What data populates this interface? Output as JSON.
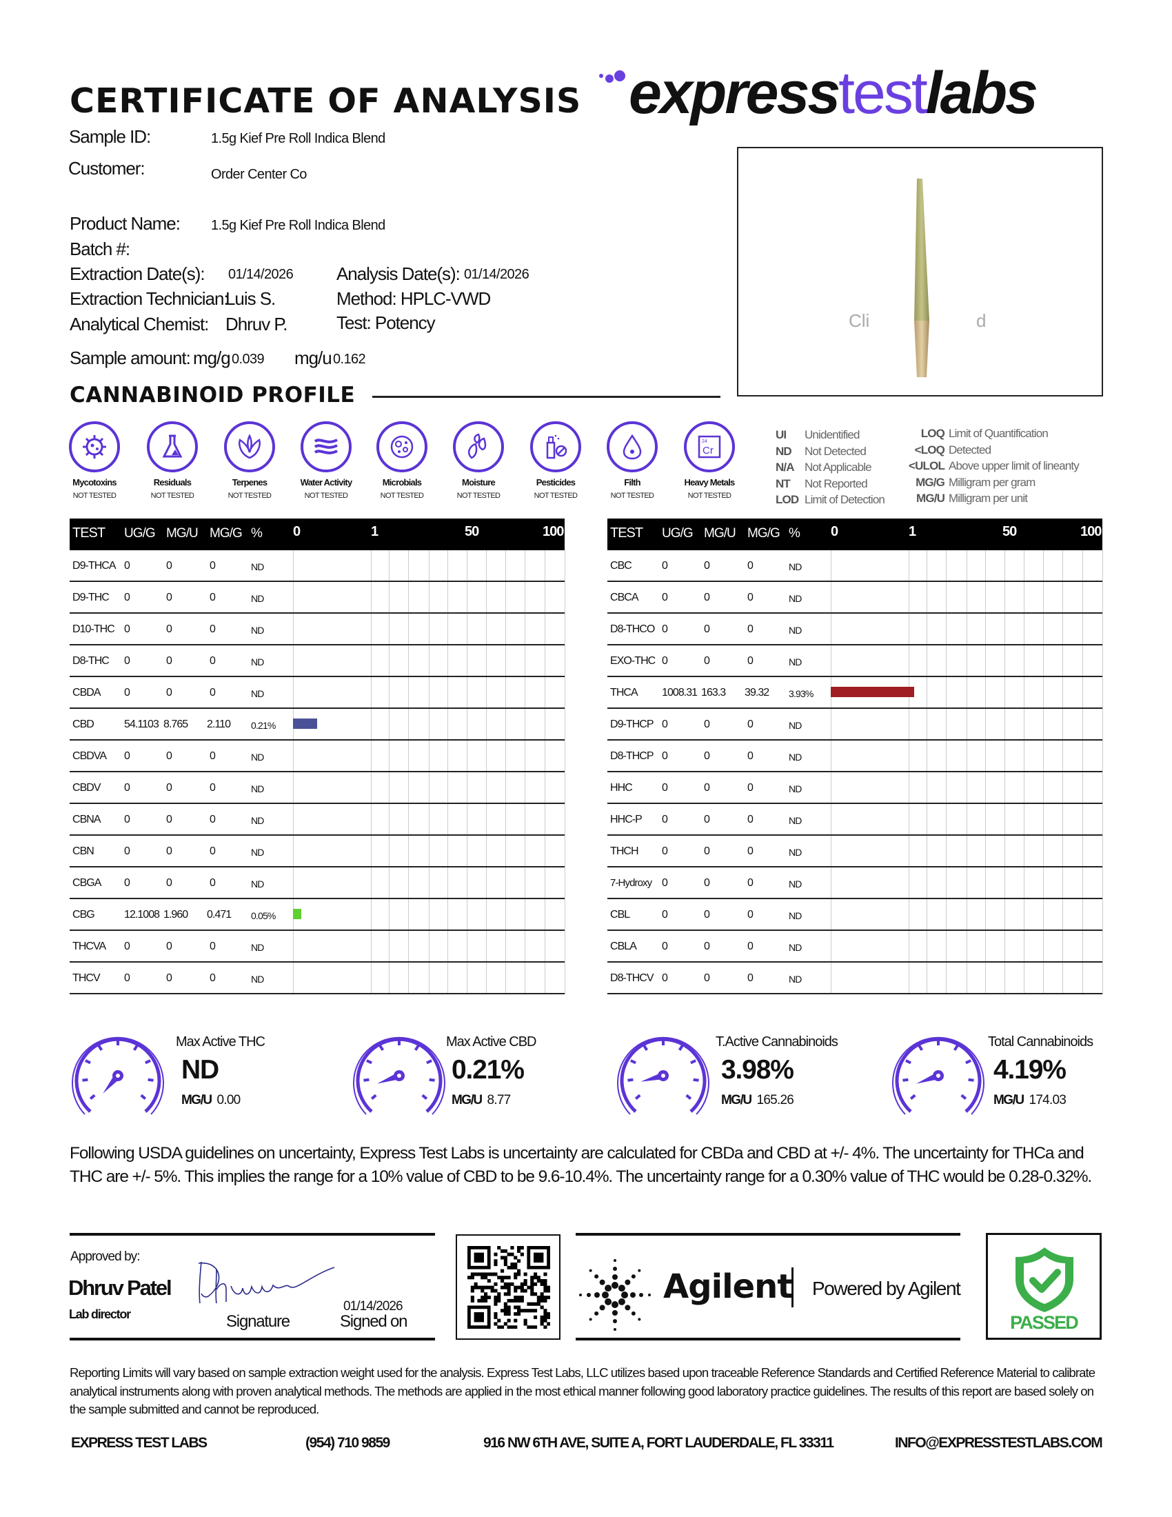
{
  "header": {
    "title": "CERTIFICATE OF ANALYSIS",
    "logo": {
      "part1": "express",
      "part2": "test",
      "part3": "labs",
      "accent_color": "#6a3fe0"
    }
  },
  "sample_info": {
    "sample_id_label": "Sample ID:",
    "sample_id": "1.5g Kief Pre Roll Indica Blend",
    "customer_label": "Customer:",
    "customer": "Order Center Co",
    "product_name_label": "Product Name:",
    "product_name": "1.5g Kief Pre Roll Indica Blend",
    "batch_label": "Batch #:",
    "extraction_date_label": "Extraction Date(s):",
    "extraction_date": "01/14/2026",
    "analysis_date_label": "Analysis Date(s):",
    "analysis_date": "01/14/2026",
    "technician_label": "Extraction Technician:",
    "technician": "Luis S.",
    "method": "Method: HPLC-VWD",
    "chemist_label": "Analytical Chemist:",
    "chemist": "Dhruv P.",
    "test": "Test: Potency",
    "sample_amount_label": "Sample amount:",
    "mg_g_label": "mg/g",
    "mg_g": "0.039",
    "mg_u_label": "mg/u",
    "mg_u": "0.162"
  },
  "product_image": {
    "overlay_left": "Cli",
    "overlay_right": "d"
  },
  "profile": {
    "title": "CANNABINOID PROFILE",
    "tests": [
      {
        "name": "Mycotoxins",
        "status": "NOT TESTED",
        "icon": "virus-icon"
      },
      {
        "name": "Residuals",
        "status": "NOT TESTED",
        "icon": "flask-icon"
      },
      {
        "name": "Terpenes",
        "status": "NOT TESTED",
        "icon": "leaf-icon"
      },
      {
        "name": "Water Activity",
        "status": "NOT TESTED",
        "icon": "waves-icon"
      },
      {
        "name": "Microbials",
        "status": "NOT TESTED",
        "icon": "petri-dish-icon"
      },
      {
        "name": "Moisture",
        "status": "NOT TESTED",
        "icon": "droplets-icon"
      },
      {
        "name": "Pesticides",
        "status": "NOT TESTED",
        "icon": "spray-bottle-icon"
      },
      {
        "name": "Filth",
        "status": "NOT TESTED",
        "icon": "drop-icon"
      },
      {
        "name": "Heavy Metals",
        "status": "NOT TESTED",
        "icon": "chromium-element-icon",
        "element_number": "24",
        "element_symbol": "Cr"
      }
    ],
    "legend_left": [
      {
        "abbr": "UI",
        "desc": "Unidentified"
      },
      {
        "abbr": "ND",
        "desc": "Not Detected"
      },
      {
        "abbr": "N/A",
        "desc": "Not Applicable"
      },
      {
        "abbr": "NT",
        "desc": "Not Reported"
      },
      {
        "abbr": "LOD",
        "desc": "Limit of Detection"
      }
    ],
    "legend_right": [
      {
        "abbr": "LOQ",
        "desc": "Limit of Quantification"
      },
      {
        "abbr": "<LOQ",
        "desc": "Detected"
      },
      {
        "abbr": "<ULOL",
        "desc": "Above upper limit of lineanty"
      },
      {
        "abbr": "MG/G",
        "desc": "Milligram per gram"
      },
      {
        "abbr": "MG/U",
        "desc": "Milligram per unit"
      }
    ]
  },
  "tables": {
    "columns": [
      "TEST",
      "UG/G",
      "MG/U",
      "MG/G",
      "%"
    ],
    "scale_ticks": [
      "0",
      "1",
      "50",
      "100"
    ],
    "left": [
      {
        "test": "D9-THCA",
        "ug_g": "0",
        "mg_u": "0",
        "mg_g": "0",
        "pct": "ND",
        "pct_value": 0
      },
      {
        "test": "D9-THC",
        "ug_g": "0",
        "mg_u": "0",
        "mg_g": "0",
        "pct": "ND",
        "pct_value": 0
      },
      {
        "test": "D10-THC",
        "ug_g": "0",
        "mg_u": "0",
        "mg_g": "0",
        "pct": "ND",
        "pct_value": 0
      },
      {
        "test": "D8-THC",
        "ug_g": "0",
        "mg_u": "0",
        "mg_g": "0",
        "pct": "ND",
        "pct_value": 0
      },
      {
        "test": "CBDA",
        "ug_g": "0",
        "mg_u": "0",
        "mg_g": "0",
        "pct": "ND",
        "pct_value": 0
      },
      {
        "test": "CBD",
        "ug_g": "54.1103",
        "mg_u": "8.765",
        "mg_g": "2.110",
        "pct": "0.21%",
        "pct_value": 0.21,
        "bar_color": "#4b5196"
      },
      {
        "test": "CBDVA",
        "ug_g": "0",
        "mg_u": "0",
        "mg_g": "0",
        "pct": "ND",
        "pct_value": 0
      },
      {
        "test": "CBDV",
        "ug_g": "0",
        "mg_u": "0",
        "mg_g": "0",
        "pct": "ND",
        "pct_value": 0
      },
      {
        "test": "CBNA",
        "ug_g": "0",
        "mg_u": "0",
        "mg_g": "0",
        "pct": "ND",
        "pct_value": 0
      },
      {
        "test": "CBN",
        "ug_g": "0",
        "mg_u": "0",
        "mg_g": "0",
        "pct": "ND",
        "pct_value": 0
      },
      {
        "test": "CBGA",
        "ug_g": "0",
        "mg_u": "0",
        "mg_g": "0",
        "pct": "ND",
        "pct_value": 0
      },
      {
        "test": "CBG",
        "ug_g": "12.1008",
        "mg_u": "1.960",
        "mg_g": "0.471",
        "pct": "0.05%",
        "pct_value": 0.05,
        "bar_color": "#5fcf32"
      },
      {
        "test": "THCVA",
        "ug_g": "0",
        "mg_u": "0",
        "mg_g": "0",
        "pct": "ND",
        "pct_value": 0
      },
      {
        "test": "THCV",
        "ug_g": "0",
        "mg_u": "0",
        "mg_g": "0",
        "pct": "ND",
        "pct_value": 0
      }
    ],
    "right": [
      {
        "test": "CBC",
        "ug_g": "0",
        "mg_u": "0",
        "mg_g": "0",
        "pct": "ND",
        "pct_value": 0
      },
      {
        "test": "CBCA",
        "ug_g": "0",
        "mg_u": "0",
        "mg_g": "0",
        "pct": "ND",
        "pct_value": 0
      },
      {
        "test": "D8-THCO",
        "ug_g": "0",
        "mg_u": "0",
        "mg_g": "0",
        "pct": "ND",
        "pct_value": 0
      },
      {
        "test": "EXO-THC",
        "ug_g": "0",
        "mg_u": "0",
        "mg_g": "0",
        "pct": "ND",
        "pct_value": 0
      },
      {
        "test": "THCA",
        "ug_g": "1008.31",
        "mg_u": "163.3",
        "mg_g": "39.32",
        "pct": "3.93%",
        "pct_value": 3.93,
        "bar_color": "#a01e23"
      },
      {
        "test": "D9-THCP",
        "ug_g": "0",
        "mg_u": "0",
        "mg_g": "0",
        "pct": "ND",
        "pct_value": 0
      },
      {
        "test": "D8-THCP",
        "ug_g": "0",
        "mg_u": "0",
        "mg_g": "0",
        "pct": "ND",
        "pct_value": 0
      },
      {
        "test": "HHC",
        "ug_g": "0",
        "mg_u": "0",
        "mg_g": "0",
        "pct": "ND",
        "pct_value": 0
      },
      {
        "test": "HHC-P",
        "ug_g": "0",
        "mg_u": "0",
        "mg_g": "0",
        "pct": "ND",
        "pct_value": 0
      },
      {
        "test": "THCH",
        "ug_g": "0",
        "mg_u": "0",
        "mg_g": "0",
        "pct": "ND",
        "pct_value": 0
      },
      {
        "test": "7-Hydroxy",
        "ug_g": "0",
        "mg_u": "0",
        "mg_g": "0",
        "pct": "ND",
        "pct_value": 0
      },
      {
        "test": "CBL",
        "ug_g": "0",
        "mg_u": "0",
        "mg_g": "0",
        "pct": "ND",
        "pct_value": 0
      },
      {
        "test": "CBLA",
        "ug_g": "0",
        "mg_u": "0",
        "mg_g": "0",
        "pct": "ND",
        "pct_value": 0
      },
      {
        "test": "D8-THCV",
        "ug_g": "0",
        "mg_u": "0",
        "mg_g": "0",
        "pct": "ND",
        "pct_value": 0
      }
    ]
  },
  "summary": [
    {
      "label": "Max Active THC",
      "value": "ND",
      "mgu_label": "MG/U",
      "mgu": "0.00"
    },
    {
      "label": "Max Active CBD",
      "value": "0.21%",
      "mgu_label": "MG/U",
      "mgu": "8.77"
    },
    {
      "label": "T.Active Cannabinoids",
      "value": "3.98%",
      "mgu_label": "MG/U",
      "mgu": "165.26"
    },
    {
      "label": "Total Cannabinoids",
      "value": "4.19%",
      "mgu_label": "MG/U",
      "mgu": "174.03"
    }
  ],
  "uncertainty_note": "Following USDA guidelines on uncertainty, Express Test Labs is uncertainty are calculated for CBDa and CBD at +/- 4%. The uncertainty for THCa and THC are +/- 5%. This implies the range for a 10% value of CBD to be 9.6-10.4%. The uncertainty range for a 0.30% value of THC would be 0.28-0.32%.",
  "approval": {
    "approved_by_label": "Approved by:",
    "name": "Dhruv Patel",
    "role": "Lab director",
    "signature_label": "Signature",
    "signed_date": "01/14/2026",
    "signed_on_label": "Signed on"
  },
  "agilent": {
    "brand": "Agilent",
    "powered_by": "Powered by Agilent"
  },
  "passed_badge": {
    "label": "PASSED",
    "color": "#3cae4a"
  },
  "disclaimer": "Reporting Limits will vary based on sample extraction weight used for the analysis. Express Test Labs, LLC utilizes based upon traceable Reference Standards and Certified Reference Material to calibrate analytical instruments along with proven analytical methods. The methods are applied in the most ethical manner following good laboratory practice guidelines. The results of this report are based solely on the sample submitted and cannot be reproduced.",
  "footer": {
    "company": "EXPRESS TEST LABS",
    "phone": "(954) 710 9859",
    "address": "916 NW 6TH AVE, SUITE A, FORT LAUDERDALE, FL 33311",
    "email": "INFO@EXPRESSTESTLABS.COM"
  }
}
